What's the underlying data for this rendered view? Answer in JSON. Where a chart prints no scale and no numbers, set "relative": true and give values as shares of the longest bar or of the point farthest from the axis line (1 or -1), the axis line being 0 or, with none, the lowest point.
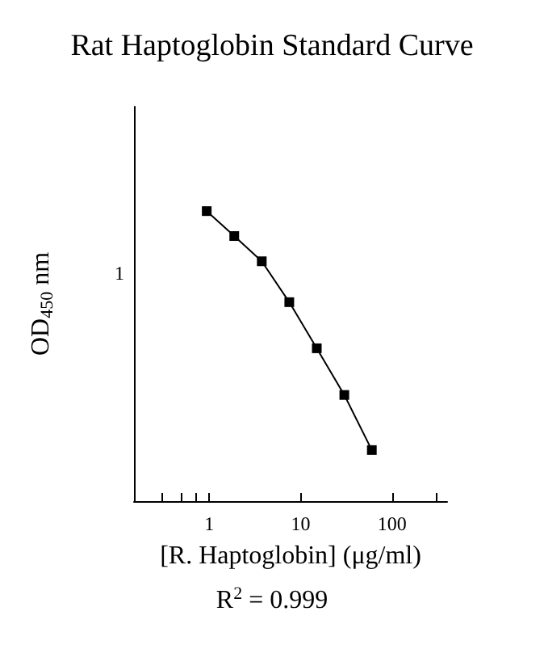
{
  "chart_data": {
    "type": "line",
    "title": "Rat Haptoglobin Standard Curve",
    "xlabel": "[R. Haptoglobin] (μg/ml)",
    "ylabel": "OD$_{450}$ nm",
    "annotations": [
      "1",
      "R$^{2}$ = 0.999"
    ],
    "x": [
      0.9375,
      1.875,
      3.75,
      7.5,
      15,
      30,
      60
    ],
    "series": [
      {
        "color": "#000000",
        "values": [
          1,
          0.914,
          0.827,
          0.686,
          0.527,
          0.366,
          0.176
        ]
      }
    ],
    "relative": true,
    "log": "x",
    "xlim": [
      0.15,
      400
    ],
    "xticks": [
      {
        "value": 0.3,
        "label": null
      },
      {
        "value": 0.5,
        "label": null
      },
      {
        "value": 0.7,
        "label": null
      },
      1,
      10,
      100,
      {
        "value": 300,
        "label": null
      }
    ],
    "grid": false,
    "marker": "square",
    "line_style": "solid"
  }
}
